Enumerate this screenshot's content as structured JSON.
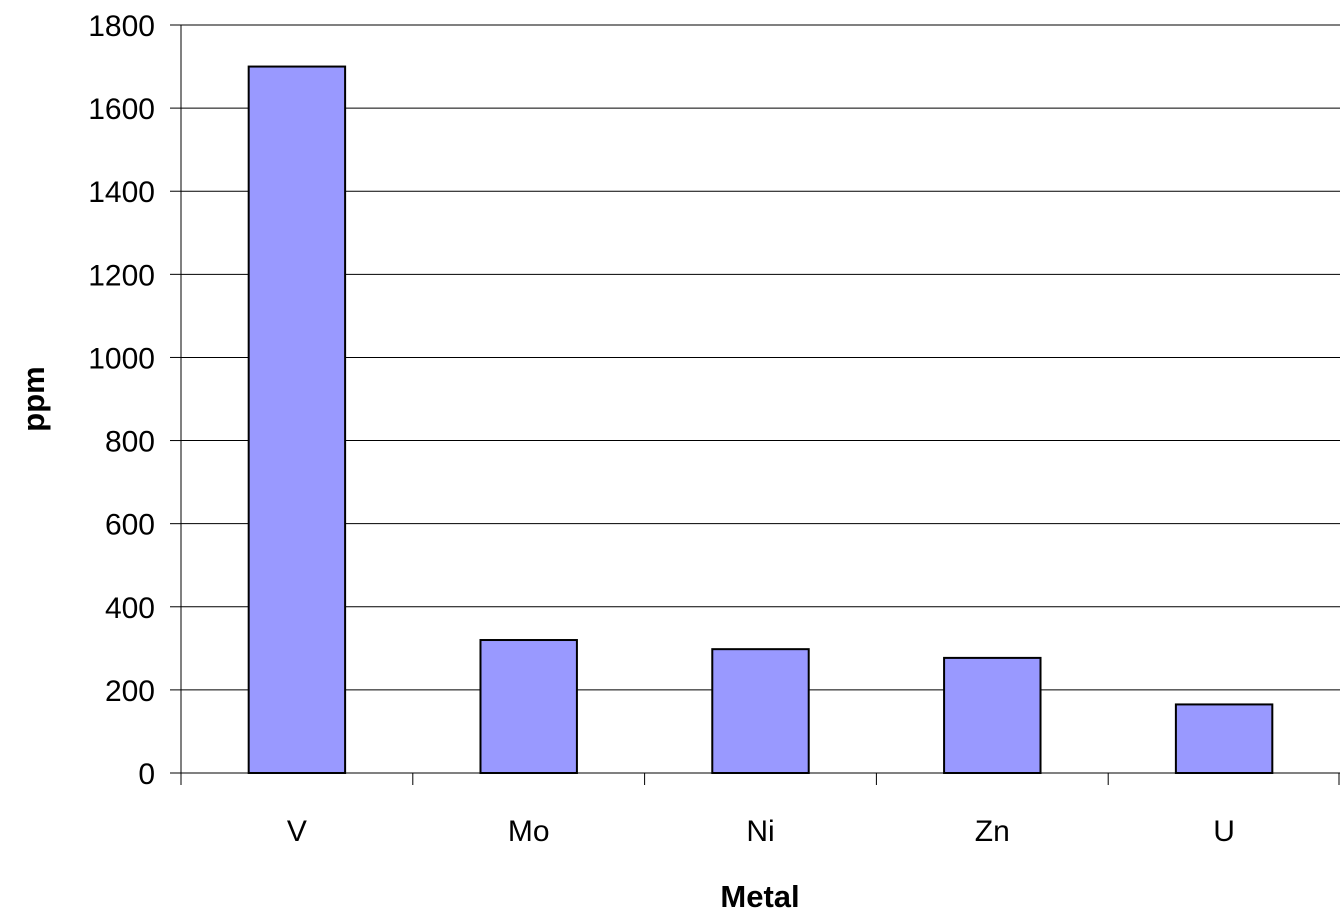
{
  "chart_data": {
    "type": "bar",
    "title": "",
    "xlabel": "Metal",
    "ylabel": "ppm",
    "categories": [
      "V",
      "Mo",
      "Ni",
      "Zn",
      "U"
    ],
    "values": [
      1700,
      320,
      298,
      277,
      165
    ],
    "ylim": [
      0,
      1800
    ],
    "yticks": [
      0,
      200,
      400,
      600,
      800,
      1000,
      1200,
      1400,
      1600,
      1800
    ],
    "grid": true,
    "legend": "none",
    "colors": {
      "bar_fill": "#9999ff",
      "bar_stroke": "#000000",
      "grid": "#000000"
    }
  }
}
